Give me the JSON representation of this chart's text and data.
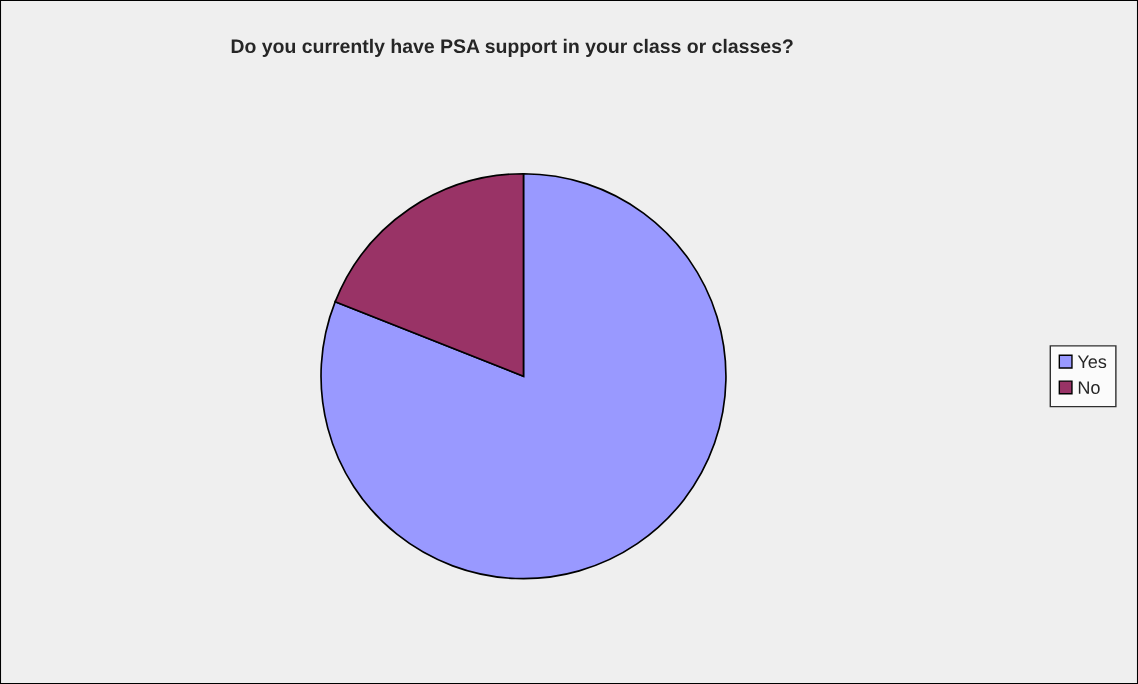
{
  "chart_data": {
    "type": "pie",
    "title": "Do you currently have PSA support in your class or classes?",
    "categories": [
      "Yes",
      "No"
    ],
    "values": [
      81,
      19
    ],
    "colors": [
      "#9999ff",
      "#993366"
    ],
    "legend": "right"
  }
}
